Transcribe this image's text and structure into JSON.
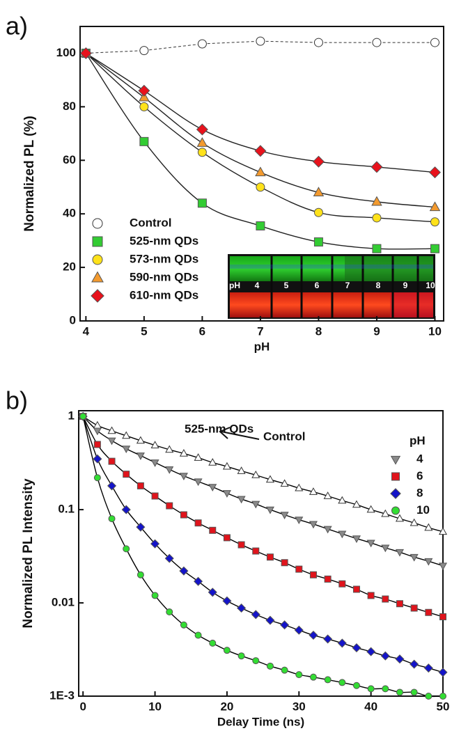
{
  "chart_data": [
    {
      "type": "line",
      "panel_label": "a)",
      "x_label": "pH",
      "y_label": "Normalized PL (%)",
      "x": [
        4,
        5,
        6,
        7,
        8,
        9,
        10
      ],
      "xlim": [
        3.9,
        10.15
      ],
      "ylim": [
        0,
        110
      ],
      "xticks": [
        4,
        5,
        6,
        7,
        8,
        9,
        10
      ],
      "yticks": [
        0,
        20,
        40,
        60,
        80,
        100
      ],
      "series": [
        {
          "name": "Control",
          "color": "#ffffff",
          "marker": "circle",
          "line_style": "dashed",
          "values": [
            100,
            101,
            103.5,
            104.5,
            104,
            104,
            104
          ]
        },
        {
          "name": "525-nm QDs",
          "color": "#33cc33",
          "marker": "square",
          "line_style": "smooth",
          "values": [
            100,
            67,
            44,
            35.5,
            29.5,
            27,
            27
          ]
        },
        {
          "name": "573-nm QDs",
          "color": "#ffe21a",
          "marker": "circle",
          "line_style": "smooth",
          "values": [
            100,
            80,
            63,
            50,
            40.5,
            38.5,
            37
          ]
        },
        {
          "name": "590-nm QDs",
          "color": "#f39a2e",
          "marker": "triangle-up",
          "line_style": "smooth",
          "values": [
            100,
            83.5,
            66.5,
            55.5,
            48,
            44.5,
            42.5
          ]
        },
        {
          "name": "610-nm QDs",
          "color": "#e8121c",
          "marker": "diamond",
          "line_style": "smooth",
          "values": [
            100,
            86,
            71.5,
            63.5,
            59.5,
            57.5,
            55.5
          ]
        }
      ],
      "inset_labels": [
        "pH",
        "4",
        "5",
        "6",
        "7",
        "8",
        "9",
        "10"
      ]
    },
    {
      "type": "scatter",
      "panel_label": "b)",
      "x_label": "Delay Time (ns)",
      "y_label": "Normalized PL Intensity",
      "log_y": true,
      "legend_title": "pH",
      "fit_color": "#000000",
      "annotations": [
        "525-nm QDs",
        "Control"
      ],
      "x": [
        0,
        2,
        4,
        6,
        8,
        10,
        12,
        14,
        16,
        18,
        20,
        22,
        24,
        26,
        28,
        30,
        32,
        34,
        36,
        38,
        40,
        42,
        44,
        46,
        48,
        50
      ],
      "xlim": [
        -0.6,
        50
      ],
      "ylim": [
        0.001,
        1.15
      ],
      "xticks": [
        0,
        10,
        20,
        30,
        40,
        50
      ],
      "yticks": [
        {
          "value": 0.001,
          "label": "1E-3"
        },
        0.01,
        0.1,
        1
      ],
      "series": [
        {
          "color": "#ffffff",
          "marker": "triangle-up",
          "values": [
            1,
            0.8,
            0.7,
            0.62,
            0.55,
            0.49,
            0.44,
            0.4,
            0.36,
            0.32,
            0.29,
            0.26,
            0.235,
            0.21,
            0.19,
            0.17,
            0.155,
            0.14,
            0.125,
            0.113,
            0.1,
            0.09,
            0.08,
            0.072,
            0.064,
            0.058
          ]
        },
        {
          "name": "4",
          "color": "#8a8a8a",
          "marker": "triangle-down",
          "values": [
            1,
            0.7,
            0.55,
            0.45,
            0.38,
            0.32,
            0.27,
            0.23,
            0.2,
            0.175,
            0.15,
            0.13,
            0.115,
            0.1,
            0.088,
            0.078,
            0.07,
            0.062,
            0.055,
            0.049,
            0.044,
            0.039,
            0.035,
            0.031,
            0.028,
            0.025
          ]
        },
        {
          "name": "6",
          "color": "#e0141c",
          "marker": "square",
          "values": [
            1,
            0.5,
            0.33,
            0.24,
            0.18,
            0.14,
            0.11,
            0.088,
            0.072,
            0.06,
            0.05,
            0.042,
            0.036,
            0.031,
            0.027,
            0.023,
            0.02,
            0.018,
            0.016,
            0.014,
            0.012,
            0.011,
            0.0098,
            0.0088,
            0.0079,
            0.0071
          ]
        },
        {
          "name": "8",
          "color": "#1414c8",
          "marker": "diamond",
          "values": [
            1,
            0.35,
            0.18,
            0.1,
            0.065,
            0.043,
            0.03,
            0.022,
            0.017,
            0.013,
            0.0105,
            0.0088,
            0.0075,
            0.0065,
            0.0058,
            0.0051,
            0.0045,
            0.0041,
            0.0037,
            0.0033,
            0.003,
            0.0027,
            0.0025,
            0.0022,
            0.002,
            0.0018
          ]
        },
        {
          "name": "10",
          "color": "#33dd33",
          "marker": "circle",
          "values": [
            1,
            0.22,
            0.08,
            0.038,
            0.02,
            0.012,
            0.008,
            0.0058,
            0.0045,
            0.0037,
            0.0031,
            0.0027,
            0.0024,
            0.0021,
            0.0019,
            0.0017,
            0.0016,
            0.0015,
            0.0014,
            0.0013,
            0.0012,
            0.0012,
            0.0011,
            0.0011,
            0.001,
            0.001
          ]
        }
      ]
    }
  ]
}
